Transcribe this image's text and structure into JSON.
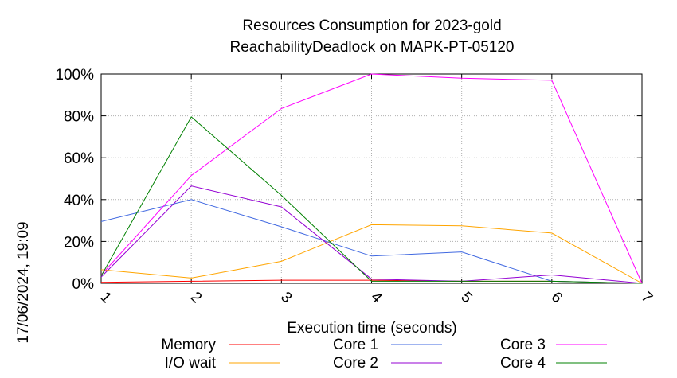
{
  "chart_data": {
    "type": "line",
    "title": [
      "Resources Consumption for 2023-gold",
      "ReachabilityDeadlock on MAPK-PT-05120"
    ],
    "xlabel": "Execution time (seconds)",
    "ylabel": "",
    "side_label": "17/06/2024, 19:09",
    "xlim": [
      1,
      7
    ],
    "ylim": [
      0,
      100
    ],
    "xticks": [
      1,
      2,
      3,
      4,
      5,
      6,
      7
    ],
    "yticks": [
      0,
      20,
      40,
      60,
      80,
      100
    ],
    "ytick_format": "{v}%",
    "grid": true,
    "legend_position": "bottom",
    "series": [
      {
        "name": "Memory",
        "color": "#ff0000",
        "x": [
          1,
          2,
          3,
          4,
          5,
          6,
          7
        ],
        "values": [
          0.5,
          1,
          1.5,
          1.5,
          1,
          1,
          0
        ]
      },
      {
        "name": "I/O wait",
        "color": "#ffa500",
        "x": [
          1,
          2,
          3,
          4,
          5,
          6,
          7
        ],
        "values": [
          6.5,
          2.5,
          10.5,
          28,
          27.5,
          24,
          0
        ]
      },
      {
        "name": "Core 1",
        "color": "#4169e1",
        "x": [
          1,
          2,
          3,
          4,
          5,
          6,
          7
        ],
        "values": [
          29.5,
          40,
          27,
          13,
          15,
          1,
          0
        ]
      },
      {
        "name": "Core 2",
        "color": "#9400d3",
        "x": [
          1,
          2,
          3,
          4,
          5,
          6,
          7
        ],
        "values": [
          3,
          46.5,
          36.5,
          2,
          1,
          4,
          0
        ]
      },
      {
        "name": "Core 3",
        "color": "#ff00ff",
        "x": [
          1,
          2,
          3,
          4,
          5,
          6,
          7
        ],
        "values": [
          4,
          51.5,
          83.5,
          100,
          98,
          97,
          0
        ]
      },
      {
        "name": "Core 4",
        "color": "#008000",
        "x": [
          1,
          2,
          3,
          4,
          5,
          6,
          7
        ],
        "values": [
          3.5,
          79.5,
          42,
          1,
          1,
          1,
          0
        ]
      }
    ]
  }
}
